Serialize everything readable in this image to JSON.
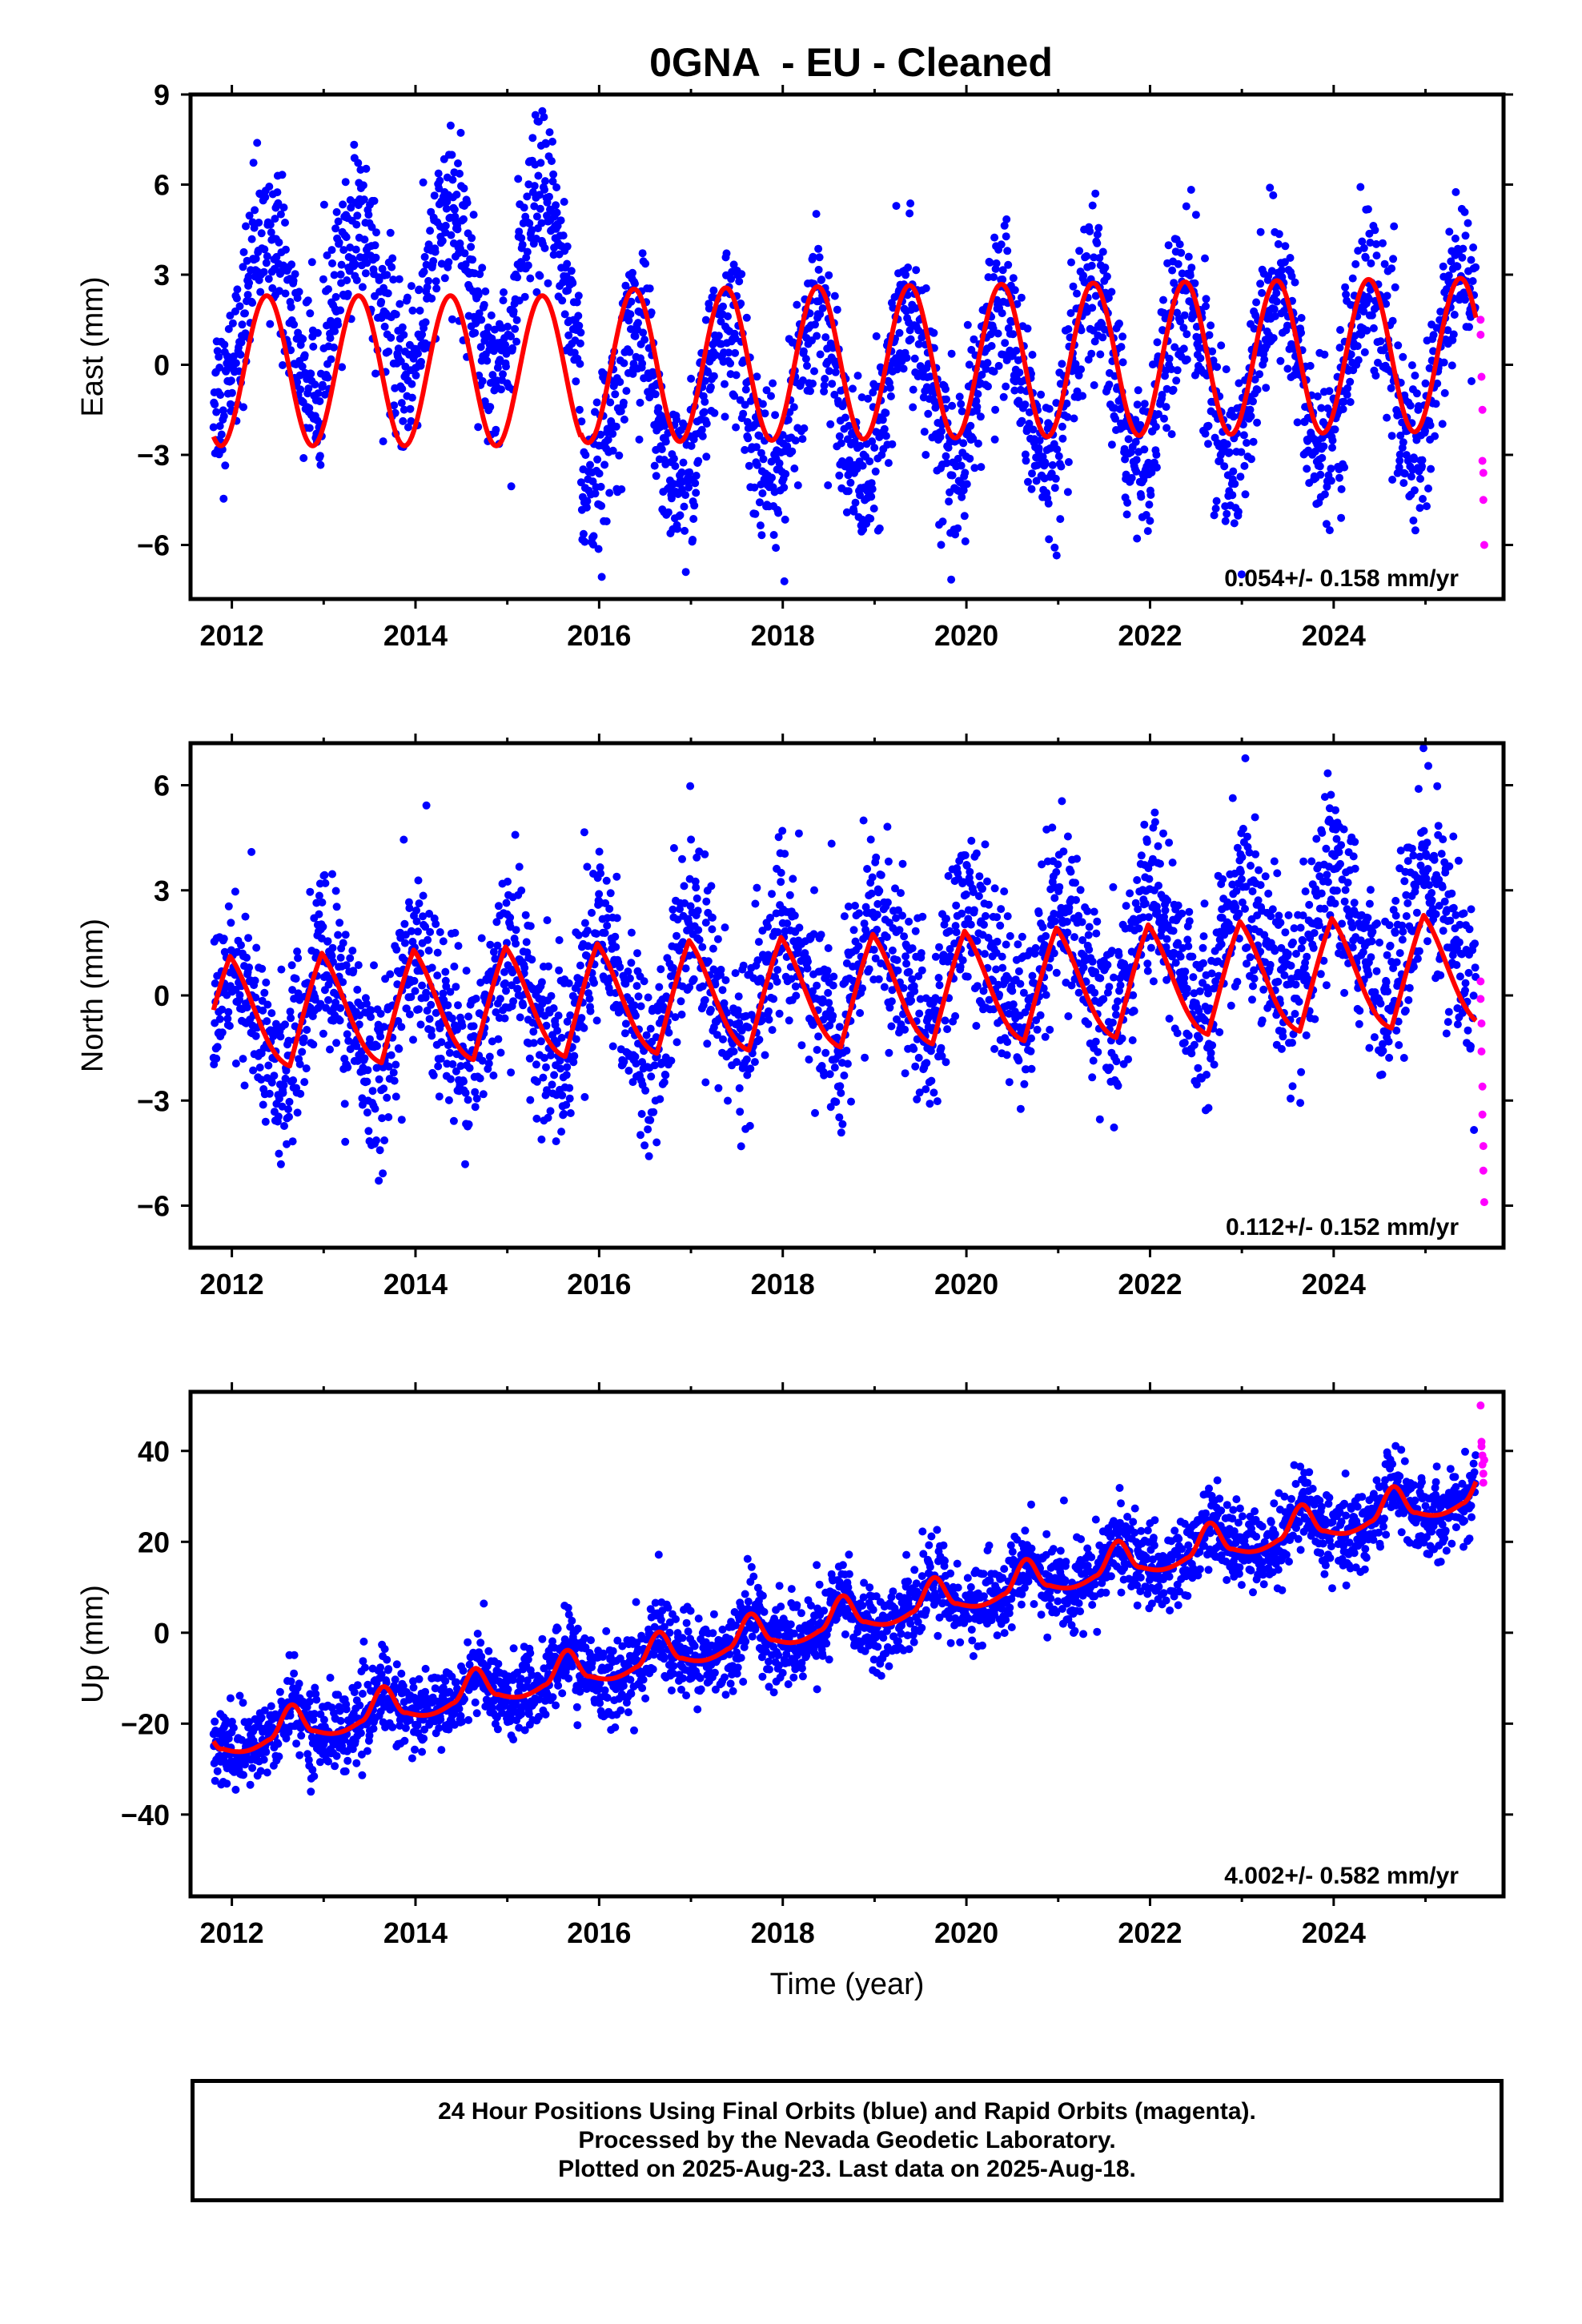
{
  "title": "0GNA  - EU - Cleaned",
  "colors": {
    "final": "#0000ff",
    "rapid": "#ff00ff",
    "model": "#ff0000"
  },
  "footer": {
    "line1": "24 Hour Positions Using Final Orbits (blue) and Rapid Orbits (magenta).",
    "line2": "Processed by the Nevada Geodetic Laboratory.",
    "line3": "Plotted on 2025-Aug-23. Last data on 2025-Aug-18."
  },
  "chart_data": [
    {
      "type": "scatter",
      "component": "east",
      "ylabel": "East (mm)",
      "xlabel": "",
      "xlim": [
        2011.55,
        2025.85
      ],
      "ylim": [
        -7.8,
        9.0
      ],
      "xticks": [
        2012,
        2014,
        2016,
        2018,
        2020,
        2022,
        2024
      ],
      "yticks": [
        -6,
        -3,
        0,
        3,
        6,
        9
      ],
      "ytick_labels": [
        "−6",
        "−3",
        "0",
        "3",
        "6",
        "9"
      ],
      "xtick_labels": [
        "2012",
        "2014",
        "2016",
        "2018",
        "2020",
        "2022",
        "2024"
      ],
      "velocity": "0.054+/- 0.158 mm/yr",
      "model": {
        "segments": [
          {
            "x0": 2011.8,
            "x1": 2015.8,
            "offset": -0.2,
            "trend": 0.0,
            "amp": 2.5,
            "peak": 2012.38
          },
          {
            "x0": 2015.8,
            "x1": 2025.55,
            "offset": -0.05,
            "trend": 0.04,
            "amp": 2.55,
            "peak": 2016.38
          }
        ]
      },
      "data_model": {
        "segments": [
          {
            "x0": 2011.8,
            "x1": 2015.8,
            "offset": 1.6,
            "trend": 0.35,
            "amp": 2.6,
            "peak": 2012.38,
            "scatter": 1.35
          },
          {
            "x0": 2015.8,
            "x1": 2025.55,
            "offset": -1.5,
            "trend": 0.16,
            "amp": 2.8,
            "peak": 2016.38,
            "scatter": 1.35
          }
        ]
      },
      "rapid_points": [
        [
          2025.6,
          1.5
        ],
        [
          2025.6,
          1.0
        ],
        [
          2025.61,
          -0.4
        ],
        [
          2025.62,
          -1.5
        ],
        [
          2025.62,
          -3.2
        ],
        [
          2025.63,
          -3.6
        ],
        [
          2025.63,
          -4.5
        ],
        [
          2025.64,
          -6.0
        ]
      ]
    },
    {
      "type": "scatter",
      "component": "north",
      "ylabel": "North (mm)",
      "xlabel": "",
      "xlim": [
        2011.55,
        2025.85
      ],
      "ylim": [
        -7.2,
        7.2
      ],
      "xticks": [
        2012,
        2014,
        2016,
        2018,
        2020,
        2022,
        2024
      ],
      "yticks": [
        -6,
        -3,
        0,
        3,
        6
      ],
      "ytick_labels": [
        "−6",
        "−3",
        "0",
        "3",
        "6"
      ],
      "xtick_labels": [
        "2012",
        "2014",
        "2016",
        "2018",
        "2020",
        "2022",
        "2024"
      ],
      "velocity": "0.112+/- 0.152 mm/yr",
      "model": {
        "segments": [
          {
            "x0": 2011.8,
            "x1": 2025.55,
            "offset": -0.6,
            "trend": 0.09,
            "amp": 1.7,
            "peak": 2011.98,
            "sawtooth": true
          }
        ]
      },
      "data_model": {
        "segments": [
          {
            "x0": 2011.8,
            "x1": 2025.55,
            "offset": -0.9,
            "trend": 0.2,
            "amp": 1.9,
            "peak": 2011.98,
            "scatter": 1.25,
            "sawtooth": true
          }
        ]
      },
      "rapid_points": [
        [
          2025.6,
          0.4
        ],
        [
          2025.6,
          -0.1
        ],
        [
          2025.61,
          -0.8
        ],
        [
          2025.61,
          -1.6
        ],
        [
          2025.62,
          -2.6
        ],
        [
          2025.62,
          -3.4
        ],
        [
          2025.63,
          -4.3
        ],
        [
          2025.63,
          -5.0
        ],
        [
          2025.64,
          -5.9
        ]
      ]
    },
    {
      "type": "scatter",
      "component": "up",
      "ylabel": "Up (mm)",
      "xlabel": "Time (year)",
      "xlim": [
        2011.55,
        2025.85
      ],
      "ylim": [
        -58,
        53
      ],
      "xticks": [
        2012,
        2014,
        2016,
        2018,
        2020,
        2022,
        2024
      ],
      "yticks": [
        -40,
        -20,
        0,
        20,
        40
      ],
      "ytick_labels": [
        "−40",
        "−20",
        "0",
        "20",
        "40"
      ],
      "xtick_labels": [
        "2012",
        "2014",
        "2016",
        "2018",
        "2020",
        "2022",
        "2024"
      ],
      "velocity": "4.002+/- 0.582 mm/yr",
      "model": {
        "segments": [
          {
            "x0": 2011.8,
            "x1": 2025.55,
            "offset": -24.5,
            "trend": 4.0,
            "amp": 4.2,
            "peak": 2012.65,
            "sharp": true
          }
        ]
      },
      "data_model": {
        "segments": [
          {
            "x0": 2011.8,
            "x1": 2025.55,
            "offset": -24.5,
            "trend": 4.0,
            "amp": 4.2,
            "peak": 2012.65,
            "scatter": 4.5,
            "sharp": true
          }
        ]
      },
      "rapid_points": [
        [
          2025.6,
          50
        ],
        [
          2025.61,
          42
        ],
        [
          2025.61,
          41
        ],
        [
          2025.62,
          39
        ],
        [
          2025.62,
          37
        ],
        [
          2025.63,
          35
        ],
        [
          2025.63,
          33
        ],
        [
          2025.64,
          38
        ]
      ]
    }
  ]
}
